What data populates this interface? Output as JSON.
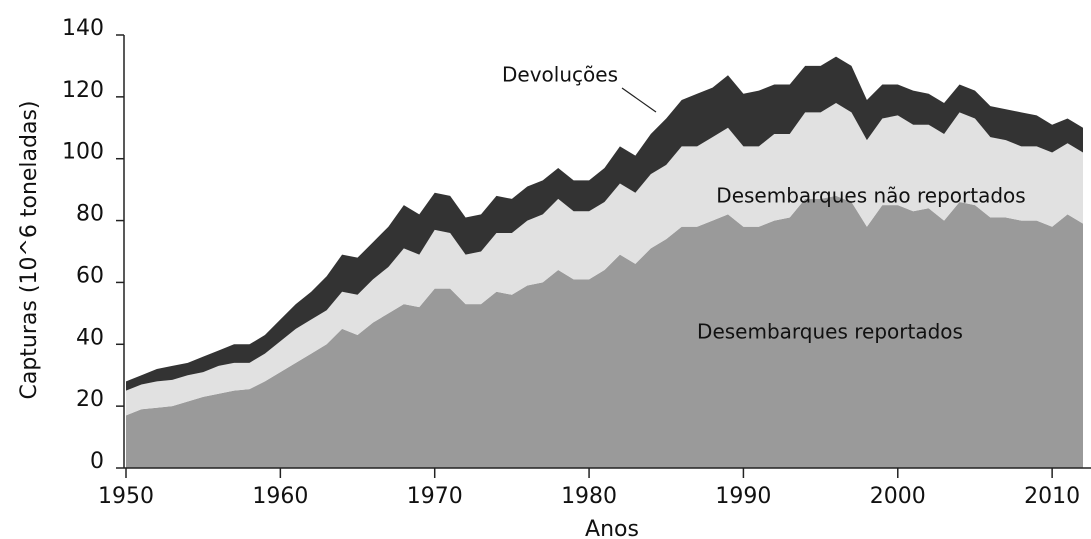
{
  "chart_data": {
    "type": "area",
    "stacked": true,
    "xlabel": "Anos",
    "ylabel": "Capturas (10^6 toneladas)",
    "x": [
      1950,
      1951,
      1952,
      1953,
      1954,
      1955,
      1956,
      1957,
      1958,
      1959,
      1960,
      1961,
      1962,
      1963,
      1964,
      1965,
      1966,
      1967,
      1968,
      1969,
      1970,
      1971,
      1972,
      1973,
      1974,
      1975,
      1976,
      1977,
      1978,
      1979,
      1980,
      1981,
      1982,
      1983,
      1984,
      1985,
      1986,
      1987,
      1988,
      1989,
      1990,
      1991,
      1992,
      1993,
      1994,
      1995,
      1996,
      1997,
      1998,
      1999,
      2000,
      2001,
      2002,
      2003,
      2004,
      2005,
      2006,
      2007,
      2008,
      2009,
      2010,
      2011,
      2012
    ],
    "series": [
      {
        "name": "Desembarques reportados",
        "color": "#9a9a9a",
        "values": [
          17,
          19,
          19.5,
          20,
          21.5,
          23,
          24,
          25,
          25.5,
          28,
          31,
          34,
          37,
          40,
          45,
          43,
          47,
          50,
          53,
          52,
          58,
          58,
          53,
          53,
          57,
          56,
          59,
          60,
          64,
          61,
          61,
          64,
          69,
          66,
          71,
          74,
          78,
          78,
          80,
          82,
          78,
          78,
          80,
          81,
          87,
          87,
          88,
          86,
          78,
          85,
          85,
          83,
          84,
          80,
          86,
          85,
          81,
          81,
          80,
          80,
          78,
          82,
          79
        ]
      },
      {
        "name": "Desembarques não reportados",
        "color": "#e1e1e1",
        "values": [
          8,
          8,
          8.5,
          8.5,
          8.5,
          8,
          9,
          9,
          8.5,
          9,
          10,
          11,
          11,
          11,
          12,
          13,
          14,
          15,
          18,
          17,
          19,
          18,
          16,
          17,
          19,
          20,
          21,
          22,
          23,
          22,
          22,
          22,
          23,
          23,
          24,
          24,
          26,
          26,
          27,
          28,
          26,
          26,
          28,
          27,
          28,
          28,
          30,
          29,
          28,
          28,
          29,
          28,
          27,
          28,
          29,
          28,
          26,
          25,
          24,
          24,
          24,
          23,
          23
        ]
      },
      {
        "name": "Devoluções",
        "color": "#333333",
        "values": [
          3,
          3,
          4,
          4.5,
          4,
          5,
          5,
          6,
          6,
          6,
          7,
          8,
          9,
          11,
          12,
          12,
          12,
          13,
          14,
          13,
          12,
          12,
          12,
          12,
          12,
          11,
          11,
          11,
          10,
          10,
          10,
          11,
          12,
          12,
          13,
          15,
          15,
          17,
          16,
          17,
          17,
          18,
          16,
          16,
          15,
          15,
          15,
          15,
          13,
          11,
          10,
          11,
          10,
          10,
          9,
          9,
          10,
          10,
          11,
          10,
          9,
          8,
          8
        ]
      }
    ],
    "xlim": [
      1950,
      2012
    ],
    "xticks": [
      1950,
      1960,
      1970,
      1980,
      1990,
      2000,
      2010
    ],
    "ylim": [
      0,
      140
    ],
    "yticks": [
      0,
      20,
      40,
      60,
      80,
      100,
      120,
      140
    ]
  }
}
